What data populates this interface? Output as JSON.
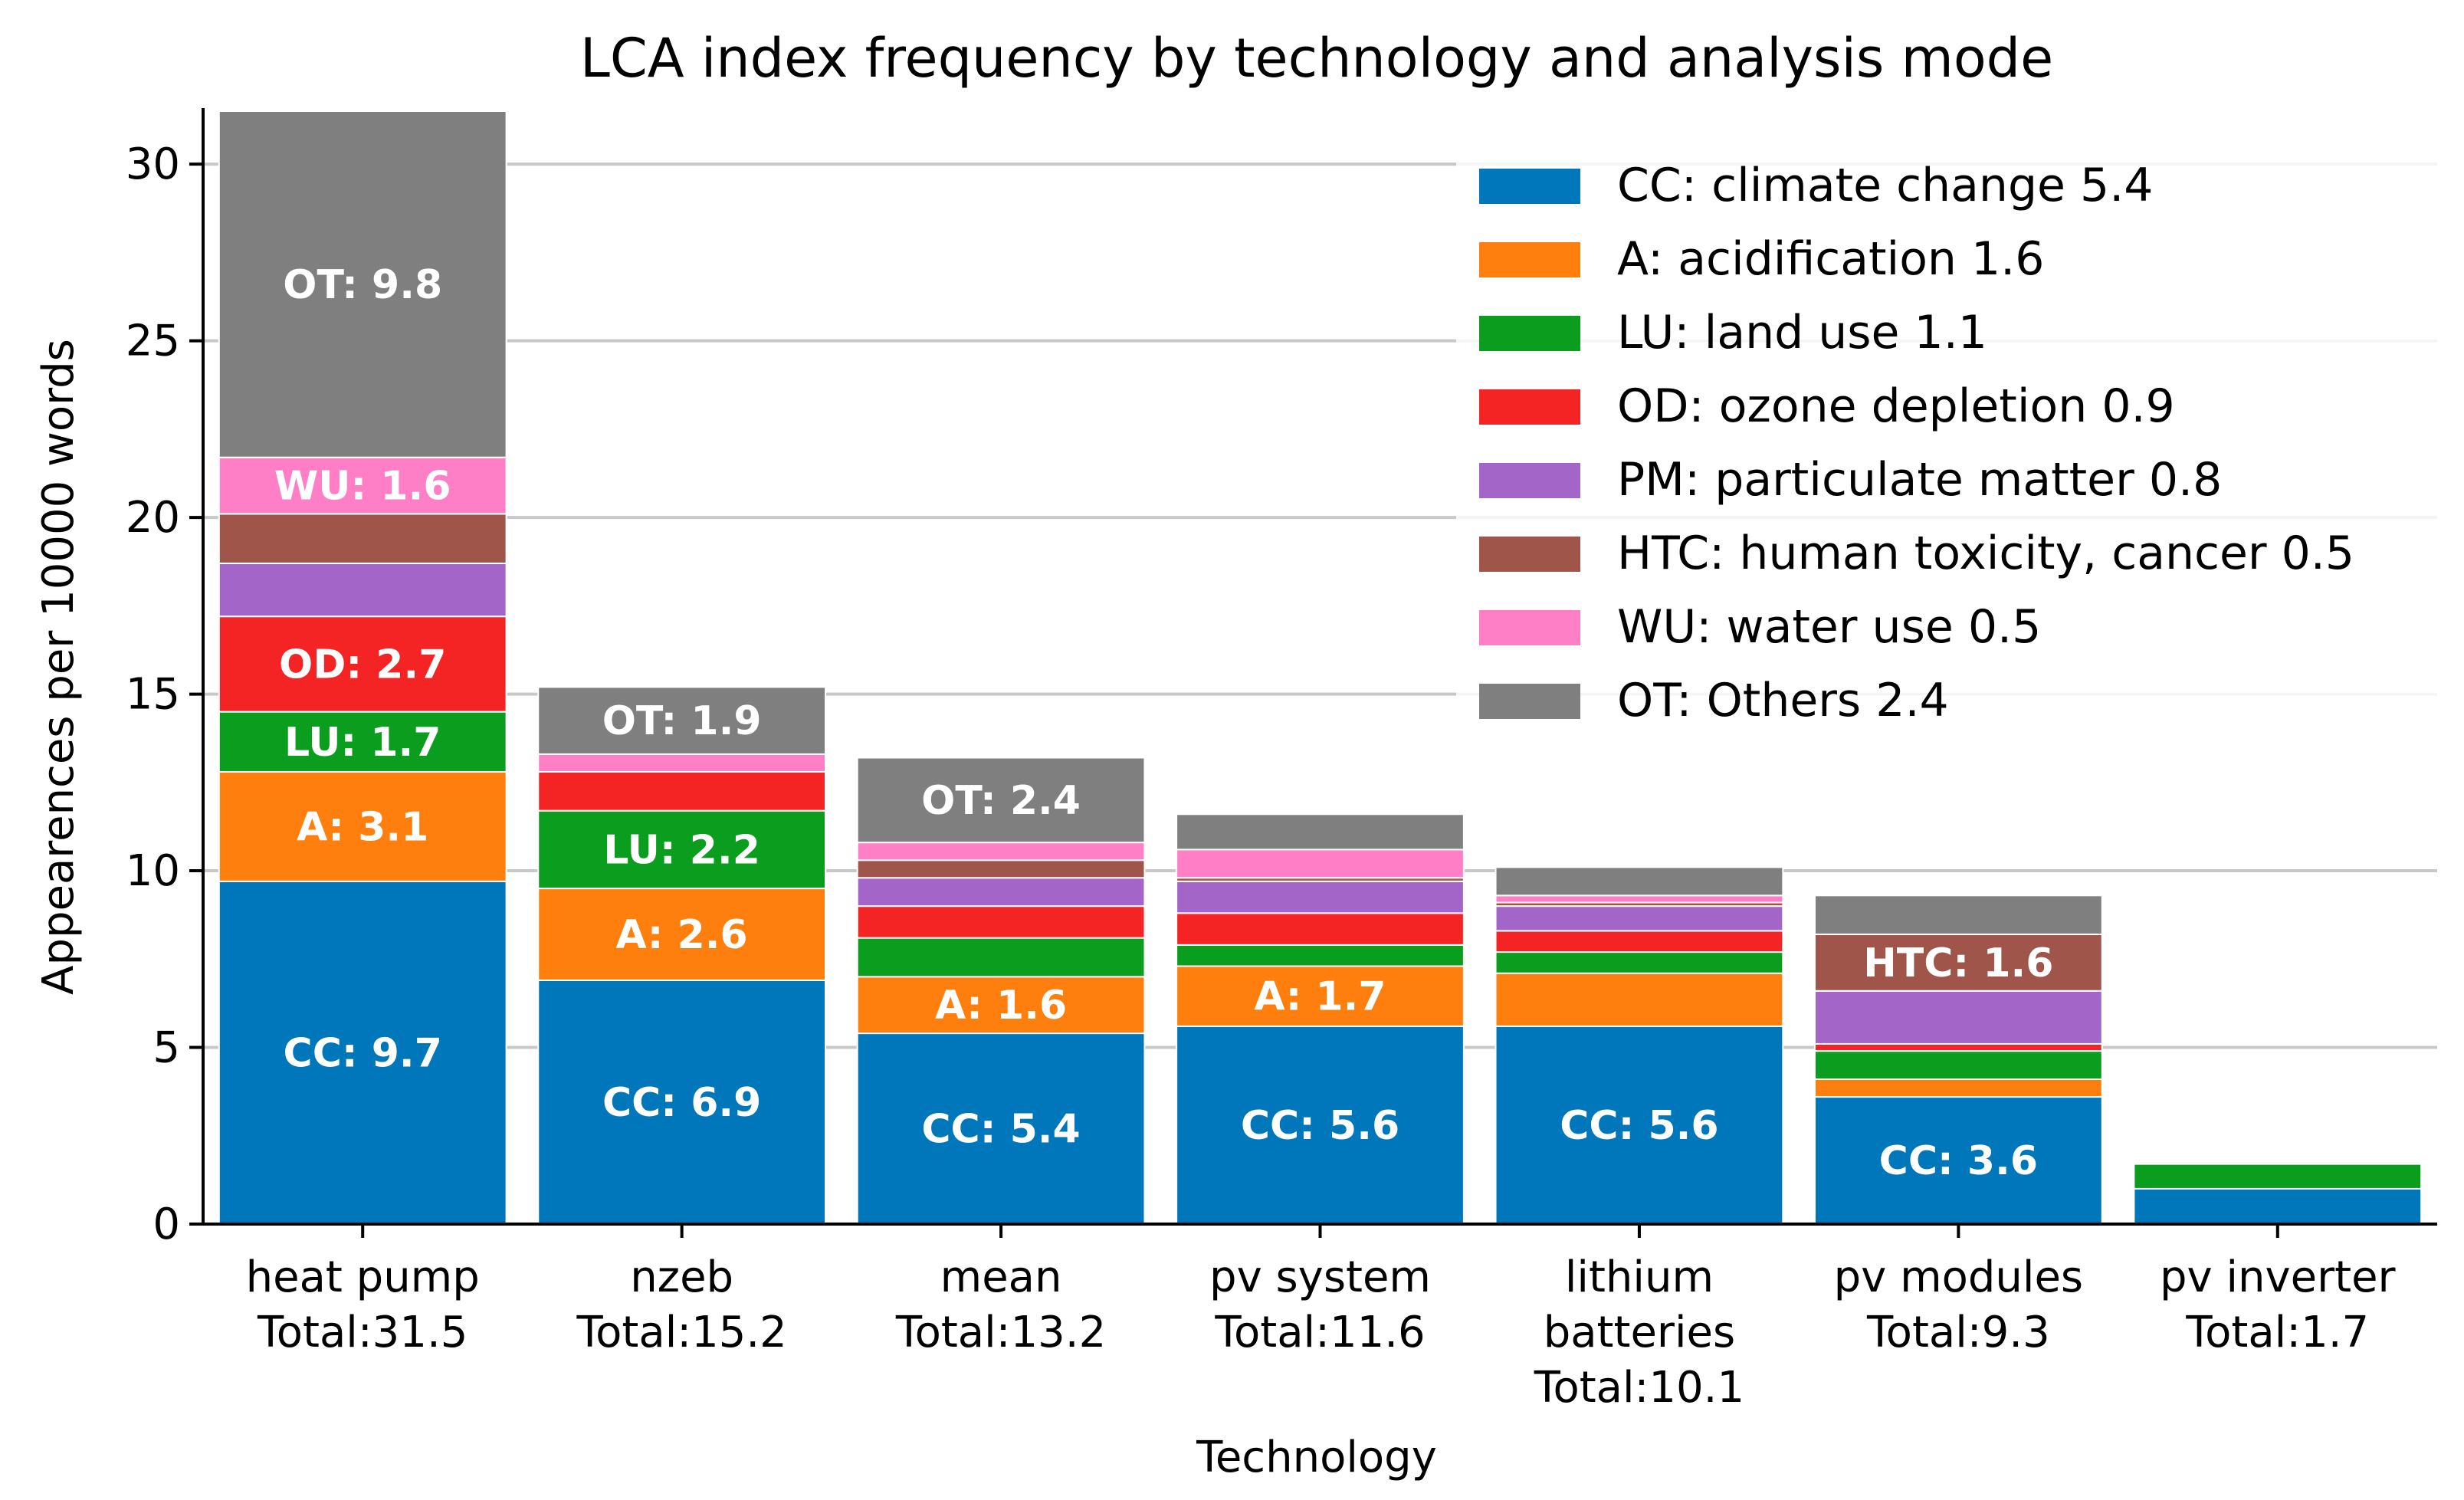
{
  "chart_data": {
    "type": "bar",
    "stacked": true,
    "title": "LCA index frequency by technology and analysis mode",
    "xlabel": "Technology",
    "ylabel": "Appearences per 10000 words",
    "ylim": [
      0,
      31.5
    ],
    "yticks": [
      0,
      5,
      10,
      15,
      20,
      25,
      30
    ],
    "grid": "y",
    "legend_position": "upper-right",
    "categories": [
      [
        "heat pump",
        "Total:31.5"
      ],
      [
        "nzeb",
        "Total:15.2"
      ],
      [
        "mean",
        "Total:13.2"
      ],
      [
        "pv system",
        "Total:11.6"
      ],
      [
        "lithium",
        "batteries",
        "Total:10.1"
      ],
      [
        "pv modules",
        "Total:9.3"
      ],
      [
        "pv inverter",
        "Total:1.7"
      ]
    ],
    "series": [
      {
        "name": "CC",
        "legend": "CC: climate change 5.4",
        "color": "#0077bb",
        "values": [
          9.7,
          6.9,
          5.4,
          5.6,
          5.6,
          3.6,
          1.0
        ]
      },
      {
        "name": "A",
        "legend": "A: acidification 1.6",
        "color": "#ff7f0e",
        "values": [
          3.1,
          2.6,
          1.6,
          1.7,
          1.5,
          0.5,
          0.0
        ]
      },
      {
        "name": "LU",
        "legend": "LU: land use 1.1",
        "color": "#0a9d1e",
        "values": [
          1.7,
          2.2,
          1.1,
          0.6,
          0.6,
          0.8,
          0.7
        ]
      },
      {
        "name": "OD",
        "legend": "OD: ozone depletion 0.9",
        "color": "#f42424",
        "values": [
          2.7,
          1.1,
          0.9,
          0.9,
          0.6,
          0.2,
          0.0
        ]
      },
      {
        "name": "PM",
        "legend": "PM: particulate matter 0.8",
        "color": "#a366c8",
        "values": [
          1.5,
          0.0,
          0.8,
          0.9,
          0.7,
          1.5,
          0.0
        ]
      },
      {
        "name": "HTC",
        "legend": "HTC: human toxicity, cancer 0.5",
        "color": "#a0554a",
        "values": [
          1.4,
          0.0,
          0.5,
          0.1,
          0.1,
          1.6,
          0.0
        ]
      },
      {
        "name": "WU",
        "legend": "WU: water use 0.5",
        "color": "#ff7fc7",
        "values": [
          1.6,
          0.5,
          0.5,
          0.8,
          0.2,
          0.0,
          0.0
        ]
      },
      {
        "name": "OT",
        "legend": "OT: Others 2.4",
        "color": "#7f7f7f",
        "values": [
          9.8,
          1.9,
          2.4,
          1.0,
          0.8,
          1.1,
          0.0
        ]
      }
    ],
    "data_labels": [
      {
        "category": 0,
        "series": "CC",
        "text": "CC: 9.7"
      },
      {
        "category": 0,
        "series": "A",
        "text": "A: 3.1"
      },
      {
        "category": 0,
        "series": "LU",
        "text": "LU: 1.7"
      },
      {
        "category": 0,
        "series": "OD",
        "text": "OD: 2.7"
      },
      {
        "category": 0,
        "series": "WU",
        "text": "WU: 1.6"
      },
      {
        "category": 0,
        "series": "OT",
        "text": "OT: 9.8"
      },
      {
        "category": 1,
        "series": "CC",
        "text": "CC: 6.9"
      },
      {
        "category": 1,
        "series": "A",
        "text": "A: 2.6"
      },
      {
        "category": 1,
        "series": "LU",
        "text": "LU: 2.2"
      },
      {
        "category": 1,
        "series": "OT",
        "text": "OT: 1.9"
      },
      {
        "category": 2,
        "series": "CC",
        "text": "CC: 5.4"
      },
      {
        "category": 2,
        "series": "A",
        "text": "A: 1.6"
      },
      {
        "category": 2,
        "series": "OT",
        "text": "OT: 2.4"
      },
      {
        "category": 3,
        "series": "CC",
        "text": "CC: 5.6"
      },
      {
        "category": 3,
        "series": "A",
        "text": "A: 1.7"
      },
      {
        "category": 4,
        "series": "CC",
        "text": "CC: 5.6"
      },
      {
        "category": 5,
        "series": "CC",
        "text": "CC: 3.6"
      },
      {
        "category": 5,
        "series": "HTC",
        "text": "HTC: 1.6"
      }
    ]
  }
}
